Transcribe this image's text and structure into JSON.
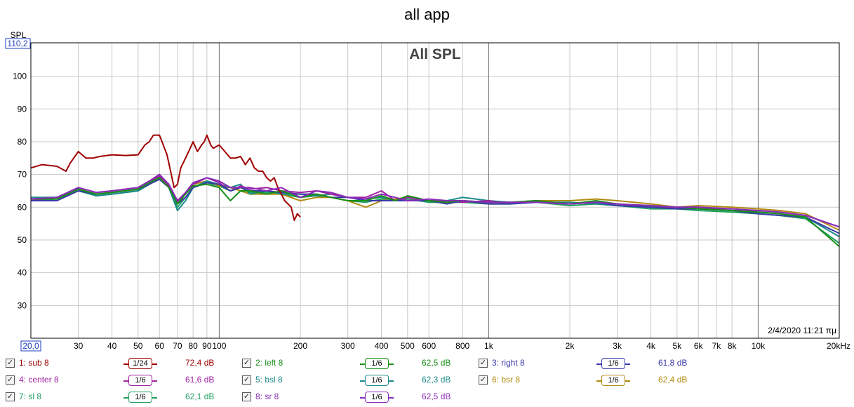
{
  "window_title": "all app",
  "chart_data": {
    "type": "line",
    "title": "All SPL",
    "ylabel": "SPL",
    "x_scale": "log",
    "xlim": [
      20,
      20000
    ],
    "ylim": [
      20,
      110.2
    ],
    "y_max_label": "110,2",
    "x_min_label": "20,0",
    "yticks": [
      "30",
      "40",
      "50",
      "60",
      "70",
      "80",
      "90",
      "100"
    ],
    "xticks": [
      {
        "v": 30,
        "label": "30"
      },
      {
        "v": 40,
        "label": "40"
      },
      {
        "v": 50,
        "label": "50"
      },
      {
        "v": 60,
        "label": "60"
      },
      {
        "v": 70,
        "label": "70"
      },
      {
        "v": 80,
        "label": "80"
      },
      {
        "v": 90,
        "label": "90"
      },
      {
        "v": 100,
        "label": "100"
      },
      {
        "v": 200,
        "label": "200"
      },
      {
        "v": 300,
        "label": "300"
      },
      {
        "v": 400,
        "label": "400"
      },
      {
        "v": 500,
        "label": "500"
      },
      {
        "v": 600,
        "label": "600"
      },
      {
        "v": 800,
        "label": "800"
      },
      {
        "v": 1000,
        "label": "1k"
      },
      {
        "v": 2000,
        "label": "2k"
      },
      {
        "v": 3000,
        "label": "3k"
      },
      {
        "v": 4000,
        "label": "4k"
      },
      {
        "v": 5000,
        "label": "5k"
      },
      {
        "v": 6000,
        "label": "6k"
      },
      {
        "v": 7000,
        "label": "7k"
      },
      {
        "v": 8000,
        "label": "8k"
      },
      {
        "v": 10000,
        "label": "10k"
      },
      {
        "v": 20000,
        "label": "20kHz"
      }
    ],
    "grid": true,
    "timestamp": "2/4/2020 11:21 πμ",
    "series": [
      {
        "name": "1: sub 8",
        "smoothing": "1/24",
        "level": "72,4 dB",
        "color": "#a00000",
        "x": [
          20,
          22,
          25,
          27,
          28,
          30,
          32,
          34,
          36,
          40,
          45,
          50,
          53,
          55,
          57,
          60,
          62,
          64,
          66,
          68,
          70,
          72,
          75,
          78,
          80,
          83,
          86,
          88,
          90,
          93,
          95,
          100,
          105,
          110,
          115,
          120,
          125,
          130,
          135,
          140,
          145,
          150,
          155,
          160,
          165,
          170,
          175,
          180,
          185,
          190,
          195,
          200
        ],
        "y": [
          72,
          73,
          72.5,
          71,
          73.5,
          77,
          75,
          75,
          75.5,
          76,
          75.8,
          76,
          79,
          80,
          82,
          82,
          79,
          76,
          71,
          66,
          67,
          72,
          75,
          78,
          80,
          77,
          79,
          80,
          82,
          79,
          78,
          79,
          77,
          75,
          75,
          75.5,
          73,
          75,
          72,
          71,
          71,
          69,
          68,
          69,
          66,
          64,
          62,
          61,
          60,
          56,
          58,
          57
        ]
      },
      {
        "name": "2: left 8",
        "smoothing": "1/6",
        "level": "62,5 dB",
        "color": "#178f17",
        "x": [
          20,
          25,
          30,
          35,
          40,
          50,
          55,
          60,
          65,
          70,
          75,
          80,
          90,
          100,
          110,
          120,
          130,
          150,
          170,
          200,
          230,
          260,
          300,
          350,
          400,
          450,
          500,
          600,
          700,
          800,
          1000,
          1200,
          1500,
          2000,
          2500,
          3000,
          4000,
          5000,
          6000,
          8000,
          10000,
          12000,
          15000,
          20000
        ],
        "y": [
          62.5,
          62.5,
          65.5,
          64,
          64.5,
          65.5,
          67.5,
          69,
          66,
          61,
          64,
          66.5,
          67,
          66,
          62,
          65,
          65,
          64,
          65,
          63,
          64,
          63,
          62,
          62,
          63.5,
          62,
          63.5,
          62,
          61.5,
          62,
          61.5,
          61.5,
          62,
          61,
          62,
          61,
          60.5,
          60,
          59.5,
          59,
          58.5,
          58,
          57,
          48
        ]
      },
      {
        "name": "3: right 8",
        "smoothing": "1/6",
        "level": "61,8 dB",
        "color": "#3a3aa8",
        "x": [
          20,
          25,
          30,
          35,
          40,
          50,
          55,
          60,
          65,
          70,
          75,
          80,
          90,
          100,
          110,
          120,
          130,
          150,
          170,
          200,
          230,
          260,
          300,
          350,
          400,
          450,
          500,
          600,
          700,
          800,
          1000,
          1200,
          1500,
          2000,
          2500,
          3000,
          4000,
          5000,
          6000,
          8000,
          10000,
          12000,
          15000,
          20000
        ],
        "y": [
          62,
          62,
          65,
          64,
          64.5,
          65.5,
          67,
          68.5,
          66,
          61,
          63,
          66,
          67.5,
          67,
          65,
          66,
          65,
          65,
          64.5,
          64,
          64,
          63,
          63,
          62,
          62,
          62,
          62,
          62,
          61,
          62,
          61,
          61,
          61.5,
          61,
          61.5,
          60.5,
          60,
          59.5,
          59.5,
          59,
          58,
          57.5,
          57,
          52
        ]
      },
      {
        "name": "4: center 8",
        "smoothing": "1/6",
        "level": "61,6 dB",
        "color": "#a020a0",
        "x": [
          20,
          25,
          30,
          35,
          40,
          50,
          55,
          60,
          65,
          70,
          75,
          80,
          90,
          100,
          110,
          120,
          130,
          150,
          170,
          200,
          230,
          260,
          300,
          350,
          400,
          450,
          500,
          600,
          700,
          800,
          1000,
          1200,
          1500,
          2000,
          2500,
          3000,
          4000,
          5000,
          6000,
          8000,
          10000,
          12000,
          15000,
          20000
        ],
        "y": [
          62,
          63,
          66,
          64.5,
          65,
          66,
          68,
          69.5,
          66.5,
          61.5,
          64,
          67,
          69,
          67.5,
          65,
          66.5,
          65.5,
          66,
          65,
          64.5,
          65,
          64,
          63,
          63,
          65,
          62,
          63,
          62,
          62,
          61.5,
          62,
          61,
          62,
          61,
          61.5,
          61,
          60,
          60,
          60,
          59,
          59,
          58.5,
          57.5,
          54
        ]
      },
      {
        "name": "5: bsl 8",
        "smoothing": "1/6",
        "level": "62,3 dB",
        "color": "#1a8a8a",
        "x": [
          20,
          25,
          30,
          35,
          40,
          50,
          55,
          60,
          65,
          70,
          75,
          80,
          90,
          100,
          110,
          120,
          130,
          150,
          170,
          200,
          230,
          260,
          300,
          350,
          400,
          450,
          500,
          600,
          700,
          800,
          1000,
          1200,
          1500,
          2000,
          2500,
          3000,
          4000,
          5000,
          6000,
          8000,
          10000,
          12000,
          15000,
          20000
        ],
        "y": [
          63,
          63,
          65.5,
          63.5,
          64,
          65,
          67,
          69,
          66,
          59,
          62,
          66,
          68,
          67,
          66,
          67,
          64,
          65,
          64,
          64,
          63.5,
          64,
          63,
          62.5,
          63,
          62,
          63,
          62,
          62,
          63,
          62,
          61.5,
          61.5,
          61.5,
          61,
          60.5,
          60,
          59.5,
          59.5,
          59,
          58.5,
          58,
          57,
          51
        ]
      },
      {
        "name": "6: bsr 8",
        "smoothing": "1/6",
        "level": "62,4 dB",
        "color": "#b08a10",
        "x": [
          20,
          25,
          30,
          35,
          40,
          50,
          55,
          60,
          65,
          70,
          75,
          80,
          90,
          100,
          110,
          120,
          130,
          150,
          170,
          200,
          230,
          260,
          300,
          350,
          400,
          450,
          500,
          600,
          700,
          800,
          1000,
          1200,
          1500,
          2000,
          2500,
          3000,
          4000,
          5000,
          6000,
          8000,
          10000,
          12000,
          15000,
          20000
        ],
        "y": [
          62.5,
          63,
          65.5,
          64,
          64.5,
          65.5,
          67.5,
          69.5,
          66,
          62,
          64.5,
          67,
          68,
          66.5,
          66,
          65,
          64,
          64,
          64,
          62,
          63,
          63,
          62,
          60,
          62,
          62.5,
          63,
          62,
          62,
          62,
          61.5,
          61.5,
          62,
          62,
          62.5,
          62,
          61,
          60,
          60.5,
          60,
          59.5,
          59,
          58,
          53
        ]
      },
      {
        "name": "7: sl 8",
        "smoothing": "1/6",
        "level": "62,1 dB",
        "color": "#20a060",
        "x": [
          20,
          25,
          30,
          35,
          40,
          50,
          55,
          60,
          65,
          70,
          75,
          80,
          90,
          100,
          110,
          120,
          130,
          150,
          170,
          200,
          230,
          260,
          300,
          350,
          400,
          450,
          500,
          600,
          700,
          800,
          1000,
          1200,
          1500,
          2000,
          2500,
          3000,
          4000,
          5000,
          6000,
          8000,
          10000,
          12000,
          15000,
          20000
        ],
        "y": [
          62,
          62.5,
          65,
          63.5,
          64,
          65,
          67,
          69,
          66,
          60,
          63,
          66,
          67.5,
          66.5,
          65,
          66,
          64.5,
          64.5,
          64,
          63,
          63.5,
          63,
          62,
          61.5,
          62.5,
          62,
          62.5,
          61.5,
          61.5,
          61.5,
          61,
          61,
          61.5,
          60.5,
          61,
          60.5,
          59.5,
          59.5,
          59,
          58.5,
          58,
          57.5,
          56.5,
          49
        ]
      },
      {
        "name": "8: sr 8",
        "smoothing": "1/6",
        "level": "62,5 dB",
        "color": "#8a2cb8",
        "x": [
          20,
          25,
          30,
          35,
          40,
          50,
          55,
          60,
          65,
          70,
          75,
          80,
          90,
          100,
          110,
          120,
          130,
          150,
          170,
          200,
          230,
          260,
          300,
          350,
          400,
          450,
          500,
          600,
          700,
          800,
          1000,
          1200,
          1500,
          2000,
          2500,
          3000,
          4000,
          5000,
          6000,
          8000,
          10000,
          12000,
          15000,
          20000
        ],
        "y": [
          62.5,
          63,
          66,
          64.5,
          65,
          66,
          68,
          70,
          67,
          62,
          64.5,
          67.5,
          69,
          68,
          66,
          66,
          66,
          65,
          66,
          63,
          65,
          64.5,
          63,
          62.5,
          64,
          63,
          62,
          62.5,
          62,
          62,
          61.5,
          61.5,
          61.5,
          61,
          61.5,
          61,
          60.5,
          60,
          60,
          59.5,
          59,
          58.5,
          57.5,
          54
        ]
      }
    ]
  }
}
